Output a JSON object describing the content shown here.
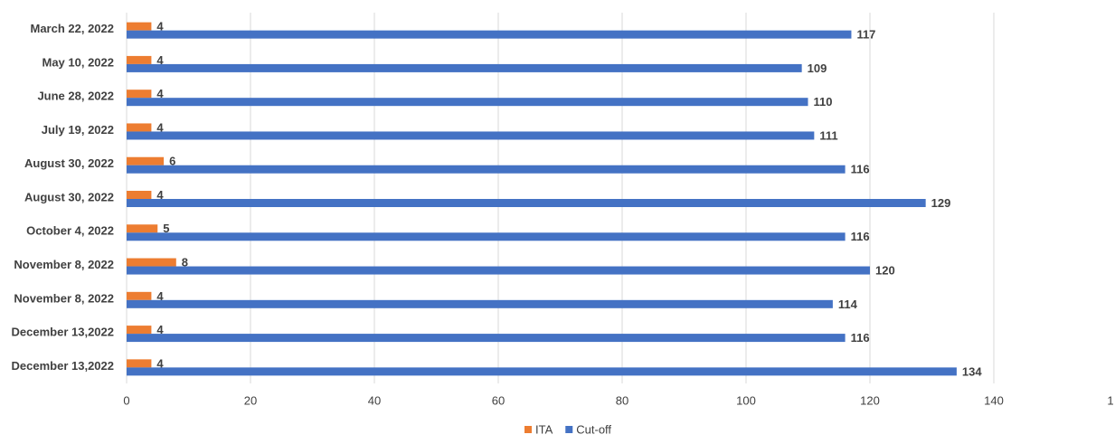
{
  "chart_data": {
    "type": "bar",
    "orientation": "horizontal",
    "categories": [
      "March 22, 2022",
      "May 10, 2022",
      "June 28, 2022",
      "July 19, 2022",
      "August 30, 2022",
      "August 30, 2022",
      "October 4, 2022",
      "November 8, 2022",
      "November 8, 2022",
      "December 13,2022",
      "December 13,2022"
    ],
    "series": [
      {
        "name": "ITA",
        "color": "#ed7d31",
        "values": [
          4,
          4,
          4,
          4,
          6,
          4,
          5,
          8,
          4,
          4,
          4
        ]
      },
      {
        "name": "Cut-off",
        "color": "#4472c4",
        "values": [
          117,
          109,
          110,
          111,
          116,
          129,
          116,
          120,
          114,
          116,
          134
        ]
      }
    ],
    "xlim": [
      0,
      160
    ],
    "xticks": [
      0,
      20,
      40,
      60,
      80,
      100,
      120,
      140,
      {
        "value": 160,
        "label": "1"
      }
    ],
    "grid": true,
    "legend": "bottom"
  }
}
